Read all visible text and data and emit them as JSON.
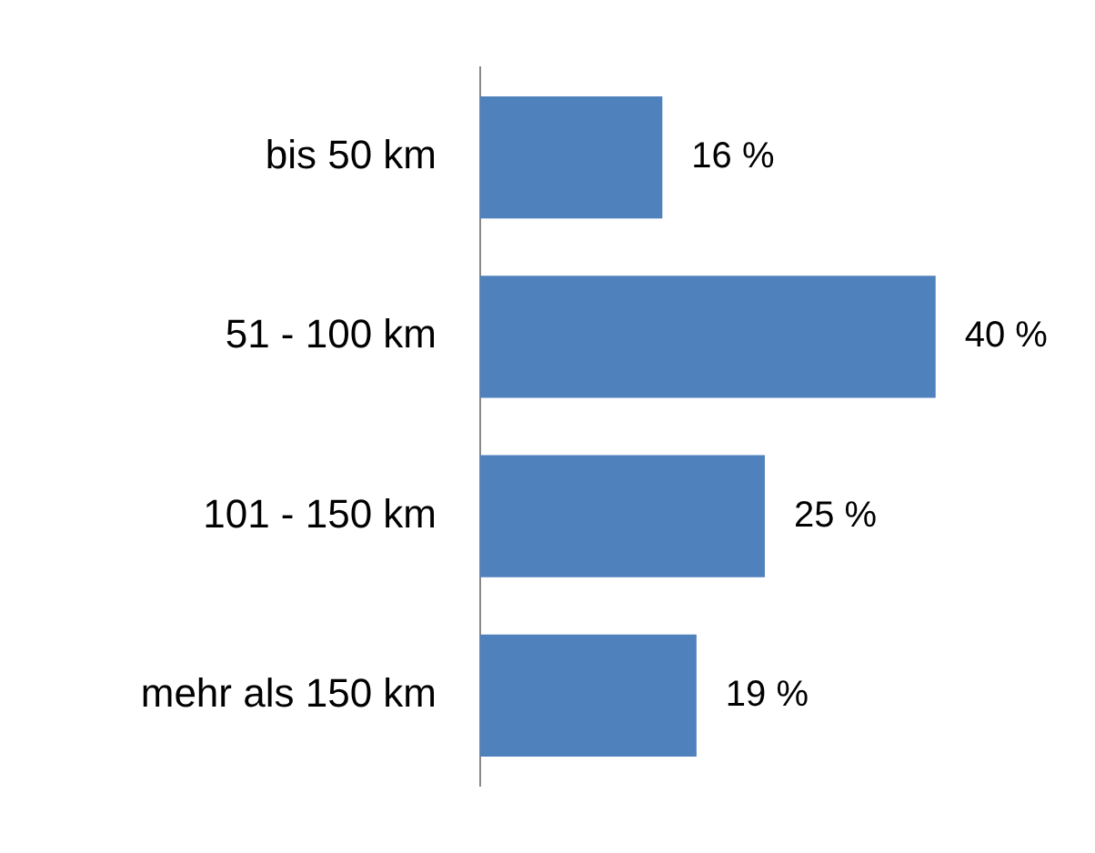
{
  "chart_data": {
    "type": "bar",
    "orientation": "horizontal",
    "categories": [
      "bis 50 km",
      "51 - 100 km",
      "101 - 150 km",
      "mehr als 150 km"
    ],
    "values": [
      16,
      40,
      25,
      19
    ],
    "color": "#4f81bd",
    "value_labels": [
      "16 %",
      "40 %",
      "25 %",
      "19 %"
    ]
  }
}
